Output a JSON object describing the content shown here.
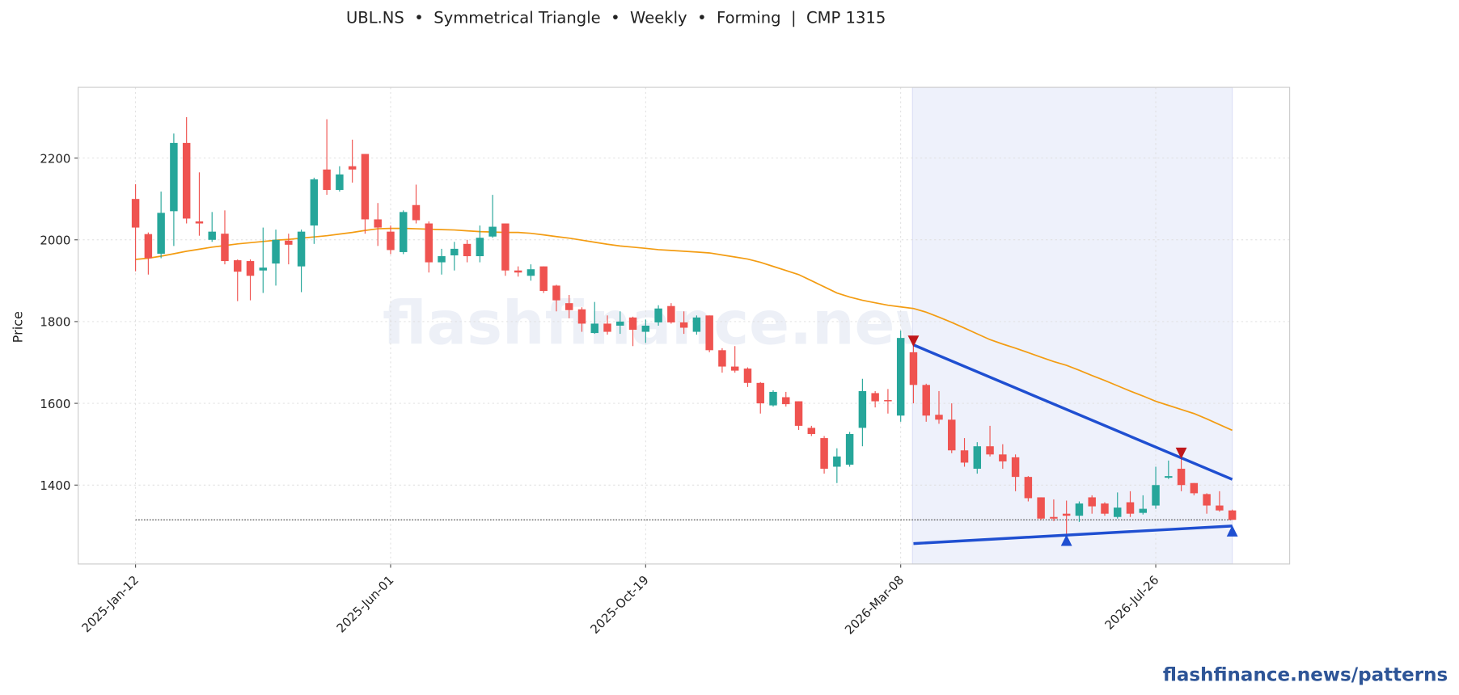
{
  "chart_data": {
    "type": "candlestick",
    "title": "UBL.NS  •  Symmetrical Triangle  •  Weekly  •  Forming  |  CMP 1315",
    "y_label": "Price",
    "watermark": "flashfinance.news",
    "footer": "flashfinance.news/patterns",
    "categories": [
      "2025-Jan-12",
      null,
      null,
      null,
      null,
      null,
      null,
      null,
      null,
      null,
      null,
      null,
      null,
      null,
      null,
      null,
      null,
      null,
      null,
      null,
      "2025-Jun-01",
      null,
      null,
      null,
      null,
      null,
      null,
      null,
      null,
      null,
      null,
      null,
      null,
      null,
      null,
      null,
      null,
      null,
      null,
      null,
      "2025-Oct-19",
      null,
      null,
      null,
      null,
      null,
      null,
      null,
      null,
      null,
      null,
      null,
      null,
      null,
      null,
      null,
      null,
      null,
      null,
      null,
      "2026-Mar-08",
      null,
      null,
      null,
      null,
      null,
      null,
      null,
      null,
      null,
      null,
      null,
      null,
      null,
      null,
      null,
      null,
      null,
      null,
      null,
      "2026-Jul-26",
      null,
      null,
      null,
      null,
      null,
      null
    ],
    "open": [
      2100,
      2014,
      1966,
      2070,
      2237,
      2045,
      2000,
      2015,
      1950,
      1948,
      1925,
      1942,
      1998,
      1935,
      2035,
      2172,
      2122,
      2180,
      2210,
      2050,
      2020,
      1970,
      2085,
      2040,
      1945,
      1962,
      1990,
      1960,
      2008,
      2040,
      1925,
      1912,
      1935,
      1888,
      1845,
      1830,
      1772,
      1795,
      1790,
      1810,
      1775,
      1798,
      1838,
      1798,
      1775,
      1815,
      1730,
      1690,
      1685,
      1650,
      1595,
      1615,
      1605,
      1540,
      1515,
      1445,
      1450,
      1540,
      1625,
      1608,
      1570,
      1725,
      1645,
      1572,
      1560,
      1485,
      1440,
      1495,
      1475,
      1468,
      1420,
      1370,
      1322,
      1330,
      1325,
      1370,
      1355,
      1322,
      1358,
      1332,
      1350,
      1418,
      1440,
      1405,
      1378,
      1350,
      1338
    ],
    "high": [
      2136,
      2018,
      2118,
      2260,
      2300,
      2165,
      2068,
      2072,
      1952,
      1952,
      2030,
      2025,
      2015,
      2025,
      2152,
      2295,
      2180,
      2245,
      2210,
      2090,
      2035,
      2072,
      2135,
      2045,
      1978,
      1995,
      2000,
      2035,
      2110,
      2040,
      1935,
      1940,
      1935,
      1890,
      1865,
      1835,
      1848,
      1815,
      1825,
      1812,
      1805,
      1840,
      1845,
      1825,
      1815,
      1815,
      1735,
      1740,
      1688,
      1652,
      1632,
      1628,
      1605,
      1545,
      1520,
      1490,
      1530,
      1660,
      1630,
      1635,
      1778,
      1740,
      1648,
      1630,
      1600,
      1515,
      1505,
      1545,
      1500,
      1475,
      1422,
      1370,
      1365,
      1362,
      1360,
      1375,
      1358,
      1382,
      1385,
      1375,
      1445,
      1460,
      1470,
      1405,
      1380,
      1385,
      1340
    ],
    "low": [
      1923,
      1915,
      1955,
      1985,
      2040,
      2010,
      1995,
      1940,
      1850,
      1852,
      1870,
      1888,
      1940,
      1872,
      1990,
      2110,
      2118,
      2140,
      2015,
      1985,
      1965,
      1965,
      2040,
      1920,
      1915,
      1925,
      1945,
      1945,
      2005,
      1912,
      1910,
      1900,
      1870,
      1825,
      1808,
      1775,
      1770,
      1768,
      1770,
      1740,
      1748,
      1790,
      1795,
      1770,
      1768,
      1725,
      1675,
      1675,
      1640,
      1575,
      1592,
      1592,
      1535,
      1520,
      1428,
      1405,
      1445,
      1495,
      1590,
      1575,
      1555,
      1600,
      1555,
      1550,
      1478,
      1445,
      1428,
      1470,
      1440,
      1385,
      1360,
      1315,
      1312,
      1280,
      1310,
      1330,
      1325,
      1318,
      1322,
      1328,
      1342,
      1415,
      1385,
      1375,
      1330,
      1335,
      1315
    ],
    "close": [
      2030,
      1955,
      2066,
      2237,
      2052,
      2040,
      2020,
      1948,
      1922,
      1912,
      1932,
      2000,
      1988,
      2020,
      2148,
      2122,
      2160,
      2172,
      2050,
      2030,
      1975,
      2068,
      2048,
      1945,
      1960,
      1978,
      1960,
      2005,
      2032,
      1925,
      1920,
      1928,
      1875,
      1852,
      1828,
      1795,
      1795,
      1775,
      1800,
      1780,
      1790,
      1832,
      1798,
      1785,
      1810,
      1730,
      1690,
      1680,
      1650,
      1600,
      1628,
      1598,
      1545,
      1525,
      1440,
      1470,
      1525,
      1630,
      1605,
      1605,
      1760,
      1645,
      1570,
      1560,
      1485,
      1455,
      1495,
      1475,
      1458,
      1420,
      1368,
      1318,
      1318,
      1325,
      1355,
      1348,
      1330,
      1345,
      1330,
      1342,
      1400,
      1422,
      1400,
      1380,
      1350,
      1338,
      1315
    ],
    "up_color": "#26a69a",
    "down_color": "#ef5350",
    "moving_average": {
      "color": "#f39c12",
      "values": [
        1952,
        1955,
        1960,
        1966,
        1972,
        1977,
        1982,
        1986,
        1990,
        1993,
        1996,
        1999,
        2001,
        2004,
        2007,
        2010,
        2014,
        2018,
        2023,
        2027,
        2028,
        2028,
        2027,
        2026,
        2025,
        2024,
        2022,
        2020,
        2019,
        2018,
        2018,
        2016,
        2012,
        2008,
        2004,
        1999,
        1994,
        1989,
        1985,
        1982,
        1979,
        1976,
        1974,
        1972,
        1970,
        1968,
        1963,
        1958,
        1953,
        1945,
        1935,
        1925,
        1915,
        1900,
        1885,
        1870,
        1860,
        1852,
        1846,
        1840,
        1836,
        1832,
        1823,
        1811,
        1798,
        1784,
        1770,
        1756,
        1745,
        1735,
        1724,
        1713,
        1702,
        1693,
        1681,
        1668,
        1656,
        1643,
        1630,
        1618,
        1605,
        1595,
        1585,
        1575,
        1562,
        1548,
        1534
      ]
    },
    "highlight": {
      "from": 61,
      "to": 86,
      "color": "#eef1fb"
    },
    "trendlines": [
      {
        "color": "#1f4fd1",
        "x": [
          61,
          86
        ],
        "values": [
          1743,
          1414
        ]
      },
      {
        "color": "#1f4fd1",
        "x": [
          61,
          86
        ],
        "values": [
          1257,
          1300
        ]
      }
    ],
    "markers": [
      {
        "shape": "down",
        "color": "#c0171b",
        "x": 61,
        "value": 1752
      },
      {
        "shape": "down",
        "color": "#c0171b",
        "x": 82,
        "value": 1478
      },
      {
        "shape": "up",
        "color": "#1f4fd1",
        "x": 73,
        "value": 1265
      },
      {
        "shape": "up",
        "color": "#1f4fd1",
        "x": 86,
        "value": 1288
      }
    ],
    "cmp_line": 1315,
    "ylim": [
      1207,
      2373
    ],
    "yticks": [
      1400,
      1600,
      1800,
      2000,
      2200
    ],
    "grid": true
  }
}
